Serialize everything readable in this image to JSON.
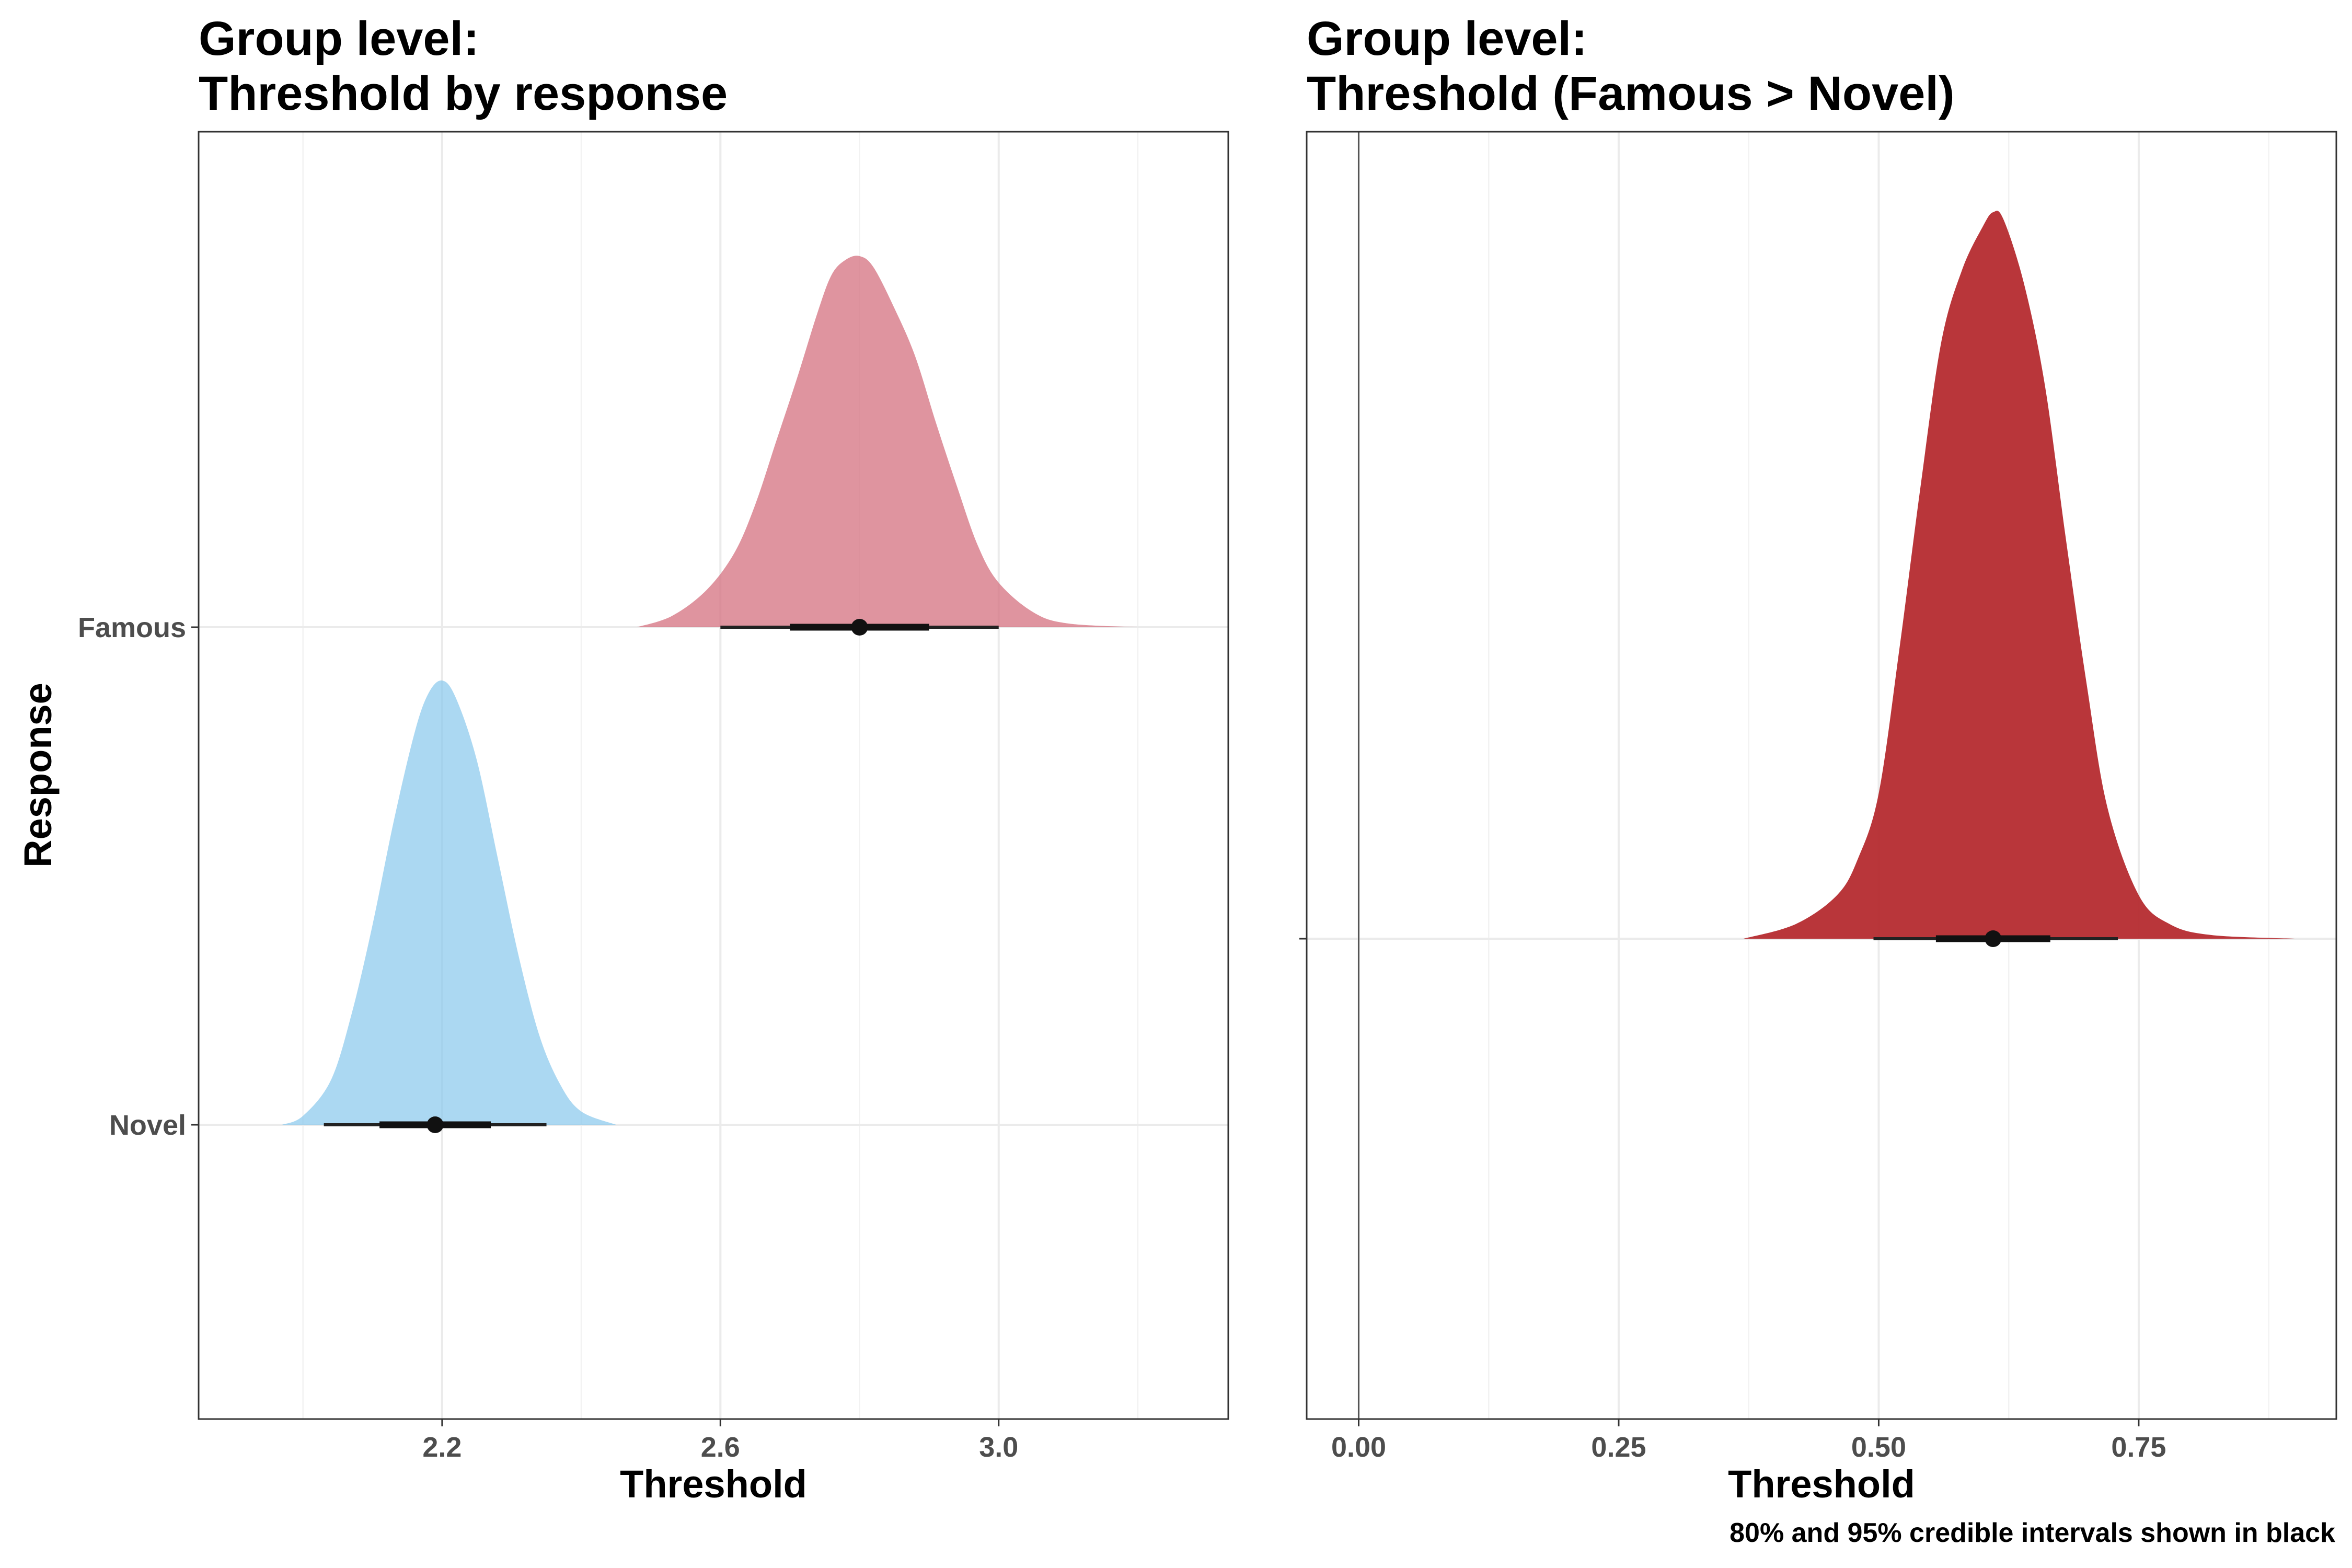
{
  "caption": "80% and 95% credible intervals shown in black",
  "chart_data": [
    {
      "type": "density",
      "title_lines": [
        "Group level:",
        "Threshold by response"
      ],
      "xlabel": "Threshold",
      "ylabel": "Response",
      "x_ticks": [
        2.2,
        2.6,
        3.0
      ],
      "x_tick_labels": [
        "2.2",
        "2.6",
        "3.0"
      ],
      "xlim": [
        1.85,
        3.33
      ],
      "categories": [
        "Famous",
        "Novel"
      ],
      "grid": true,
      "series": [
        {
          "name": "Famous",
          "color": "#d4707f",
          "opacity": 0.75,
          "density": [
            [
              2.48,
              0.0
            ],
            [
              2.53,
              0.03
            ],
            [
              2.58,
              0.1
            ],
            [
              2.62,
              0.2
            ],
            [
              2.65,
              0.33
            ],
            [
              2.68,
              0.5
            ],
            [
              2.71,
              0.67
            ],
            [
              2.74,
              0.85
            ],
            [
              2.76,
              0.95
            ],
            [
              2.78,
              0.99
            ],
            [
              2.8,
              1.0
            ],
            [
              2.82,
              0.97
            ],
            [
              2.85,
              0.86
            ],
            [
              2.88,
              0.73
            ],
            [
              2.91,
              0.55
            ],
            [
              2.94,
              0.38
            ],
            [
              2.97,
              0.22
            ],
            [
              3.0,
              0.12
            ],
            [
              3.05,
              0.04
            ],
            [
              3.1,
              0.01
            ],
            [
              3.2,
              0.0
            ]
          ],
          "point": 2.8,
          "interval_80": [
            2.7,
            2.9
          ],
          "interval_95": [
            2.6,
            3.0
          ]
        },
        {
          "name": "Novel",
          "color": "#87c7ec",
          "opacity": 0.7,
          "density": [
            [
              1.97,
              0.0
            ],
            [
              2.0,
              0.02
            ],
            [
              2.04,
              0.1
            ],
            [
              2.07,
              0.25
            ],
            [
              2.1,
              0.45
            ],
            [
              2.13,
              0.68
            ],
            [
              2.16,
              0.88
            ],
            [
              2.18,
              0.97
            ],
            [
              2.2,
              1.0
            ],
            [
              2.22,
              0.96
            ],
            [
              2.25,
              0.82
            ],
            [
              2.28,
              0.6
            ],
            [
              2.31,
              0.38
            ],
            [
              2.34,
              0.2
            ],
            [
              2.37,
              0.09
            ],
            [
              2.4,
              0.03
            ],
            [
              2.45,
              0.0
            ]
          ],
          "point": 2.19,
          "interval_80": [
            2.11,
            2.27
          ],
          "interval_95": [
            2.03,
            2.35
          ]
        }
      ]
    },
    {
      "type": "density",
      "title_lines": [
        "Group level:",
        "Threshold (Famous > Novel)"
      ],
      "xlabel": "Threshold",
      "ylabel": "",
      "x_ticks": [
        0.0,
        0.25,
        0.5,
        0.75
      ],
      "x_tick_labels": [
        "0.00",
        "0.25",
        "0.50",
        "0.75"
      ],
      "xlim": [
        -0.05,
        0.94
      ],
      "reference_line": 0,
      "grid": true,
      "series": [
        {
          "color": "#b52b2f",
          "opacity": 0.95,
          "density": [
            [
              0.37,
              0.0
            ],
            [
              0.42,
              0.02
            ],
            [
              0.46,
              0.06
            ],
            [
              0.48,
              0.11
            ],
            [
              0.5,
              0.2
            ],
            [
              0.52,
              0.4
            ],
            [
              0.54,
              0.62
            ],
            [
              0.56,
              0.82
            ],
            [
              0.58,
              0.92
            ],
            [
              0.6,
              0.98
            ],
            [
              0.61,
              1.0
            ],
            [
              0.62,
              0.99
            ],
            [
              0.64,
              0.9
            ],
            [
              0.66,
              0.76
            ],
            [
              0.68,
              0.55
            ],
            [
              0.7,
              0.35
            ],
            [
              0.72,
              0.18
            ],
            [
              0.75,
              0.06
            ],
            [
              0.78,
              0.02
            ],
            [
              0.82,
              0.005
            ],
            [
              0.9,
              0.0
            ]
          ],
          "point": 0.61,
          "interval_80": [
            0.555,
            0.665
          ],
          "interval_95": [
            0.495,
            0.73
          ]
        }
      ]
    }
  ]
}
